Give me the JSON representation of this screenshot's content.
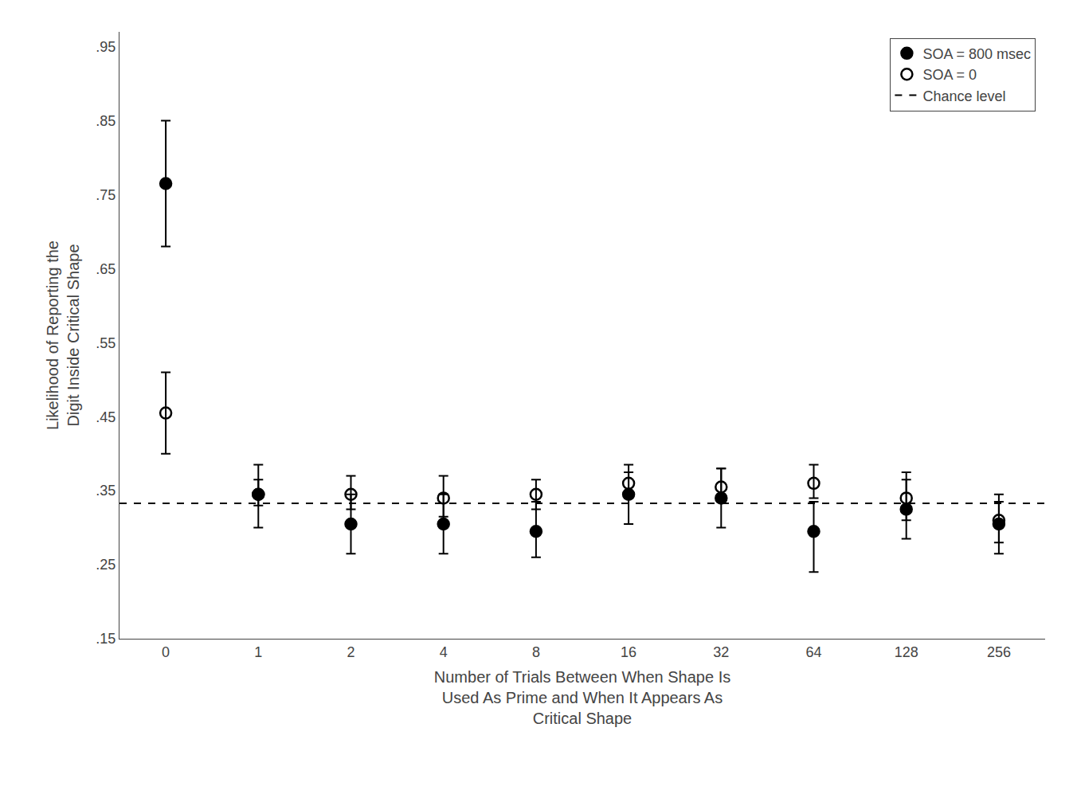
{
  "chart_data": {
    "type": "scatter",
    "categories": [
      "0",
      "1",
      "2",
      "4",
      "8",
      "16",
      "32",
      "64",
      "128",
      "256"
    ],
    "xlabel": "Number of Trials Between When Shape Is\nUsed As Prime and When It Appears As\nCritical Shape",
    "ylabel": "Likelihood of Reporting the\nDigit Inside Critical Shape",
    "series": [
      {
        "name": "SOA = 800 msec",
        "color": "#000000",
        "marker": "filled circle",
        "values": [
          0.765,
          0.345,
          0.305,
          0.305,
          0.295,
          0.345,
          0.34,
          0.295,
          0.325,
          0.305
        ],
        "error_low": [
          0.085,
          0.045,
          0.04,
          0.04,
          0.035,
          0.04,
          0.04,
          0.055,
          0.04,
          0.04
        ],
        "error_high": [
          0.085,
          0.04,
          0.04,
          0.04,
          0.04,
          0.03,
          0.04,
          0.04,
          0.04,
          0.04
        ]
      },
      {
        "name": "SOA = 0",
        "color": "#000000",
        "marker": "open circle",
        "values": [
          0.455,
          0.345,
          0.345,
          0.34,
          0.345,
          0.36,
          0.355,
          0.36,
          0.34,
          0.31
        ],
        "error_low": [
          0.055,
          0.015,
          0.02,
          0.025,
          0.02,
          0.02,
          0.02,
          0.02,
          0.03,
          0.03
        ],
        "error_high": [
          0.055,
          0.02,
          0.025,
          0.03,
          0.02,
          0.025,
          0.025,
          0.025,
          0.035,
          0.025
        ]
      },
      {
        "name": "Chance level",
        "type": "hline",
        "color": "#000000",
        "line_style": "dashed",
        "value": 0.333
      }
    ],
    "ylim": [
      0.15,
      0.97
    ],
    "yticks": [
      {
        "value": 0.15,
        "label": ".15"
      },
      {
        "value": 0.25,
        "label": ".25"
      },
      {
        "value": 0.35,
        "label": ".35"
      },
      {
        "value": 0.45,
        "label": ".45"
      },
      {
        "value": 0.55,
        "label": ".55"
      },
      {
        "value": 0.65,
        "label": ".65"
      },
      {
        "value": 0.75,
        "label": ".75"
      },
      {
        "value": 0.85,
        "label": ".85"
      },
      {
        "value": 0.95,
        "label": ".95"
      }
    ],
    "grid": false,
    "legend": "upper right"
  }
}
